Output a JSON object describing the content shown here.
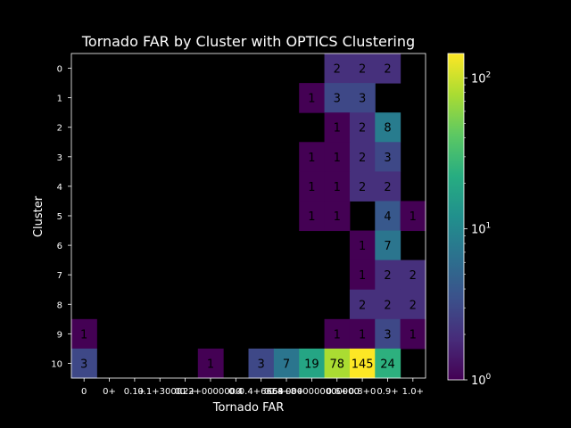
{
  "chart_data": {
    "type": "heatmap",
    "title": "Tornado FAR by Cluster with OPTICS Clustering",
    "xlabel": "Tornado FAR",
    "ylabel": "Cluster",
    "x_tick_labels": [
      "0",
      "0+",
      "0.1+",
      "0.1+3000",
      "0.2+",
      "0.2+0000000",
      "0.4",
      "0.4+6668",
      "0.4+8+",
      "0.5+0000000000000",
      "0.6+",
      "0.8+0",
      "0.9+",
      "1.0+"
    ],
    "y_tick_labels": [
      "0",
      "1",
      "2",
      "3",
      "4",
      "5",
      "6",
      "7",
      "8",
      "9",
      "10"
    ],
    "colorbar": {
      "scale": "log",
      "range": [
        1,
        145
      ],
      "ticks": [
        {
          "value": 1,
          "label": "10",
          "exp": "0"
        },
        {
          "value": 10,
          "label": "10",
          "exp": "1"
        },
        {
          "value": 100,
          "label": "10",
          "exp": "2"
        }
      ]
    },
    "cells": [
      [
        null,
        null,
        null,
        null,
        null,
        null,
        null,
        null,
        null,
        null,
        2,
        2,
        2,
        null
      ],
      [
        null,
        null,
        null,
        null,
        null,
        null,
        null,
        null,
        null,
        1,
        3,
        3,
        null,
        null
      ],
      [
        null,
        null,
        null,
        null,
        null,
        null,
        null,
        null,
        null,
        null,
        1,
        2,
        8,
        null
      ],
      [
        null,
        null,
        null,
        null,
        null,
        null,
        null,
        null,
        null,
        1,
        1,
        2,
        3,
        null
      ],
      [
        null,
        null,
        null,
        null,
        null,
        null,
        null,
        null,
        null,
        1,
        1,
        2,
        2,
        null
      ],
      [
        null,
        null,
        null,
        null,
        null,
        null,
        null,
        null,
        null,
        1,
        1,
        null,
        4,
        1
      ],
      [
        null,
        null,
        null,
        null,
        null,
        null,
        null,
        null,
        null,
        null,
        null,
        1,
        7,
        null
      ],
      [
        null,
        null,
        null,
        null,
        null,
        null,
        null,
        null,
        null,
        null,
        null,
        1,
        2,
        2
      ],
      [
        null,
        null,
        null,
        null,
        null,
        null,
        null,
        null,
        null,
        null,
        null,
        2,
        2,
        2
      ],
      [
        1,
        null,
        null,
        null,
        null,
        null,
        null,
        null,
        null,
        null,
        1,
        1,
        3,
        1
      ],
      [
        3,
        null,
        null,
        null,
        null,
        1,
        null,
        3,
        7,
        19,
        78,
        145,
        24,
        null
      ]
    ]
  }
}
